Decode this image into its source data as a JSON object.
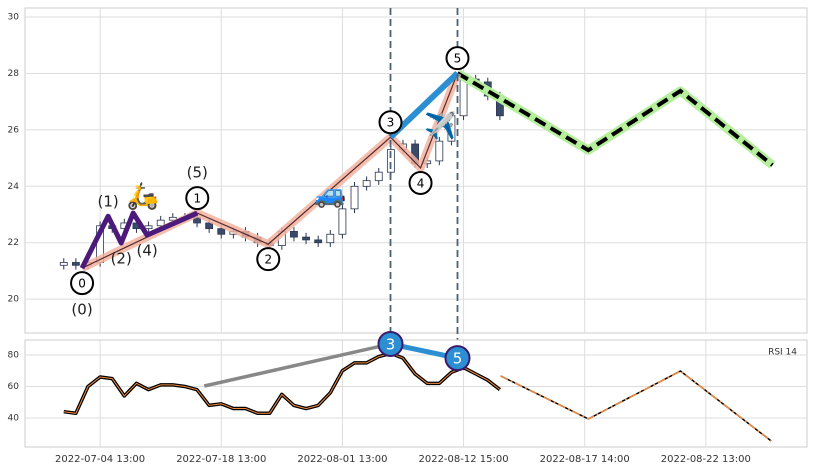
{
  "chart_data": [
    {
      "type": "candlestick",
      "x": [
        7,
        8,
        9,
        10,
        11,
        12,
        13,
        14,
        15,
        16,
        17,
        18,
        19,
        20,
        21,
        22,
        23,
        24,
        25,
        26,
        27,
        28,
        29,
        30,
        31,
        32,
        33,
        34,
        35,
        36,
        37,
        38,
        39,
        40,
        41,
        42,
        43
      ],
      "open": [
        21.2,
        21.3,
        21.2,
        21.3,
        22.6,
        22.5,
        22.7,
        22.5,
        22.6,
        22.8,
        22.9,
        22.9,
        22.7,
        22.5,
        22.3,
        22.4,
        22.2,
        22.0,
        21.9,
        22.4,
        22.2,
        22.1,
        22.0,
        22.3,
        23.2,
        24.0,
        24.2,
        24.5,
        25.3,
        25.5,
        24.8,
        24.9,
        25.6,
        26.5,
        27.8,
        27.7,
        27.2
      ],
      "high": [
        21.45,
        21.45,
        21.45,
        22.75,
        22.75,
        22.85,
        22.85,
        22.75,
        22.95,
        23.05,
        23.05,
        23.05,
        22.85,
        22.65,
        22.55,
        22.55,
        22.35,
        22.15,
        22.55,
        22.55,
        22.35,
        22.25,
        22.45,
        23.35,
        24.15,
        24.35,
        24.65,
        25.45,
        25.65,
        25.65,
        25.05,
        25.75,
        26.65,
        27.95,
        27.95,
        27.85,
        27.35
      ],
      "low": [
        21.05,
        21.05,
        21.05,
        21.15,
        22.35,
        22.35,
        22.35,
        22.35,
        22.45,
        22.65,
        22.75,
        22.55,
        22.35,
        22.15,
        22.15,
        22.05,
        21.85,
        21.75,
        21.75,
        22.05,
        21.95,
        21.85,
        21.85,
        22.15,
        23.05,
        23.85,
        24.05,
        24.35,
        25.15,
        24.65,
        24.65,
        24.75,
        25.45,
        26.35,
        27.55,
        27.05,
        26.35
      ],
      "close": [
        21.3,
        21.2,
        21.3,
        22.6,
        22.5,
        22.7,
        22.5,
        22.6,
        22.8,
        22.9,
        22.9,
        22.7,
        22.5,
        22.3,
        22.4,
        22.2,
        22.0,
        21.9,
        22.4,
        22.2,
        22.1,
        22.0,
        22.3,
        23.2,
        24.0,
        24.2,
        24.5,
        25.3,
        25.5,
        24.8,
        24.9,
        25.6,
        26.5,
        27.8,
        27.7,
        27.2,
        26.5
      ],
      "up_color": "#ffffff",
      "down_color": "#3a4a6b",
      "edge_color": "#2a3550",
      "xlim": [
        3.8,
        68.35
      ],
      "ylim": [
        18.8,
        30.32
      ],
      "xticks": [
        10,
        20,
        30,
        40,
        50,
        60
      ],
      "yticks": [
        20,
        22,
        24,
        26,
        28,
        30
      ],
      "grid": true,
      "waves": [
        {
          "color": "#f2b3a0",
          "x": [
            8.51,
            18.02,
            23.88,
            33.97,
            36.45,
            39.5
          ],
          "y": [
            21.1,
            23.05,
            21.95,
            25.74,
            24.65,
            28.01
          ],
          "labels": [
            "0",
            "1",
            "2",
            "3",
            "4",
            "5"
          ]
        },
        {
          "color": "#4b1a7a",
          "x": [
            8.51,
            10.66,
            11.74,
            12.73,
            13.88,
            18.02
          ],
          "y": [
            21.1,
            22.94,
            21.99,
            23.05,
            22.27,
            23.05
          ],
          "labels": [
            "(0)",
            "(1)",
            "(2)",
            null,
            "(4)",
            "(5)"
          ]
        },
        {
          "color": "#2b8fd1",
          "x": [
            33.97,
            39.5
          ],
          "y": [
            25.74,
            28.01
          ]
        }
      ],
      "projection": {
        "x": [
          39.5,
          50.3,
          57.9,
          65.5
        ],
        "y": [
          28.01,
          25.28,
          27.38,
          24.75
        ],
        "color": "#b5ef9c"
      },
      "vlines": [
        33.97,
        39.5
      ],
      "icons": [
        {
          "text": "🛵",
          "x": 13.55,
          "y": 23.62
        },
        {
          "text": "🚙",
          "x": 29.0,
          "y": 23.69
        },
        {
          "text": "✈️",
          "x": 38.1,
          "y": 26.1
        }
      ]
    },
    {
      "type": "line",
      "title": "RSI 14",
      "x": [
        7,
        8,
        9,
        10,
        11,
        12,
        13,
        14,
        15,
        16,
        17,
        18,
        19,
        20,
        21,
        22,
        23,
        24,
        25,
        26,
        27,
        28,
        29,
        30,
        31,
        32,
        33,
        34,
        35,
        36,
        37,
        38,
        39,
        40,
        41,
        42,
        43
      ],
      "values": [
        44,
        43,
        60,
        66,
        65,
        54,
        62,
        58,
        61,
        61,
        60,
        58,
        48,
        49,
        46,
        46,
        43,
        43,
        55,
        48,
        46,
        48,
        56,
        70,
        75,
        75,
        79,
        81,
        78,
        68,
        62,
        62,
        69,
        72,
        68,
        64,
        58
      ],
      "color": "#f08a3c",
      "xlim": [
        3.8,
        68.35
      ],
      "ylim": [
        21.6,
        89.5
      ],
      "yticks": [
        40,
        60,
        80
      ],
      "grid": true,
      "xticks": [
        {
          "value": 10,
          "label": "2022-07-04 13:00"
        },
        {
          "value": 20,
          "label": "2022-07-18 13:00"
        },
        {
          "value": 30,
          "label": "2022-08-01 13:00"
        },
        {
          "value": 40,
          "label": "2022-08-12 15:00"
        },
        {
          "value": 50,
          "label": "2022-08-17 14:00"
        },
        {
          "value": 60,
          "label": "2022-08-22 13:00"
        }
      ],
      "trendline": {
        "x": [
          18.6,
          33.97
        ],
        "values": [
          60.3,
          87
        ],
        "color": "#888888"
      },
      "markers": {
        "x": [
          33.97,
          39.5
        ],
        "values": [
          87,
          78
        ],
        "labels": [
          "3",
          "5"
        ],
        "color": "#2b8fd1"
      },
      "projection": {
        "x": [
          43.06,
          50.3,
          57.9,
          65.4
        ],
        "values": [
          66.7,
          39.4,
          69.8,
          25.4
        ],
        "color": "#f08a3c"
      }
    }
  ]
}
